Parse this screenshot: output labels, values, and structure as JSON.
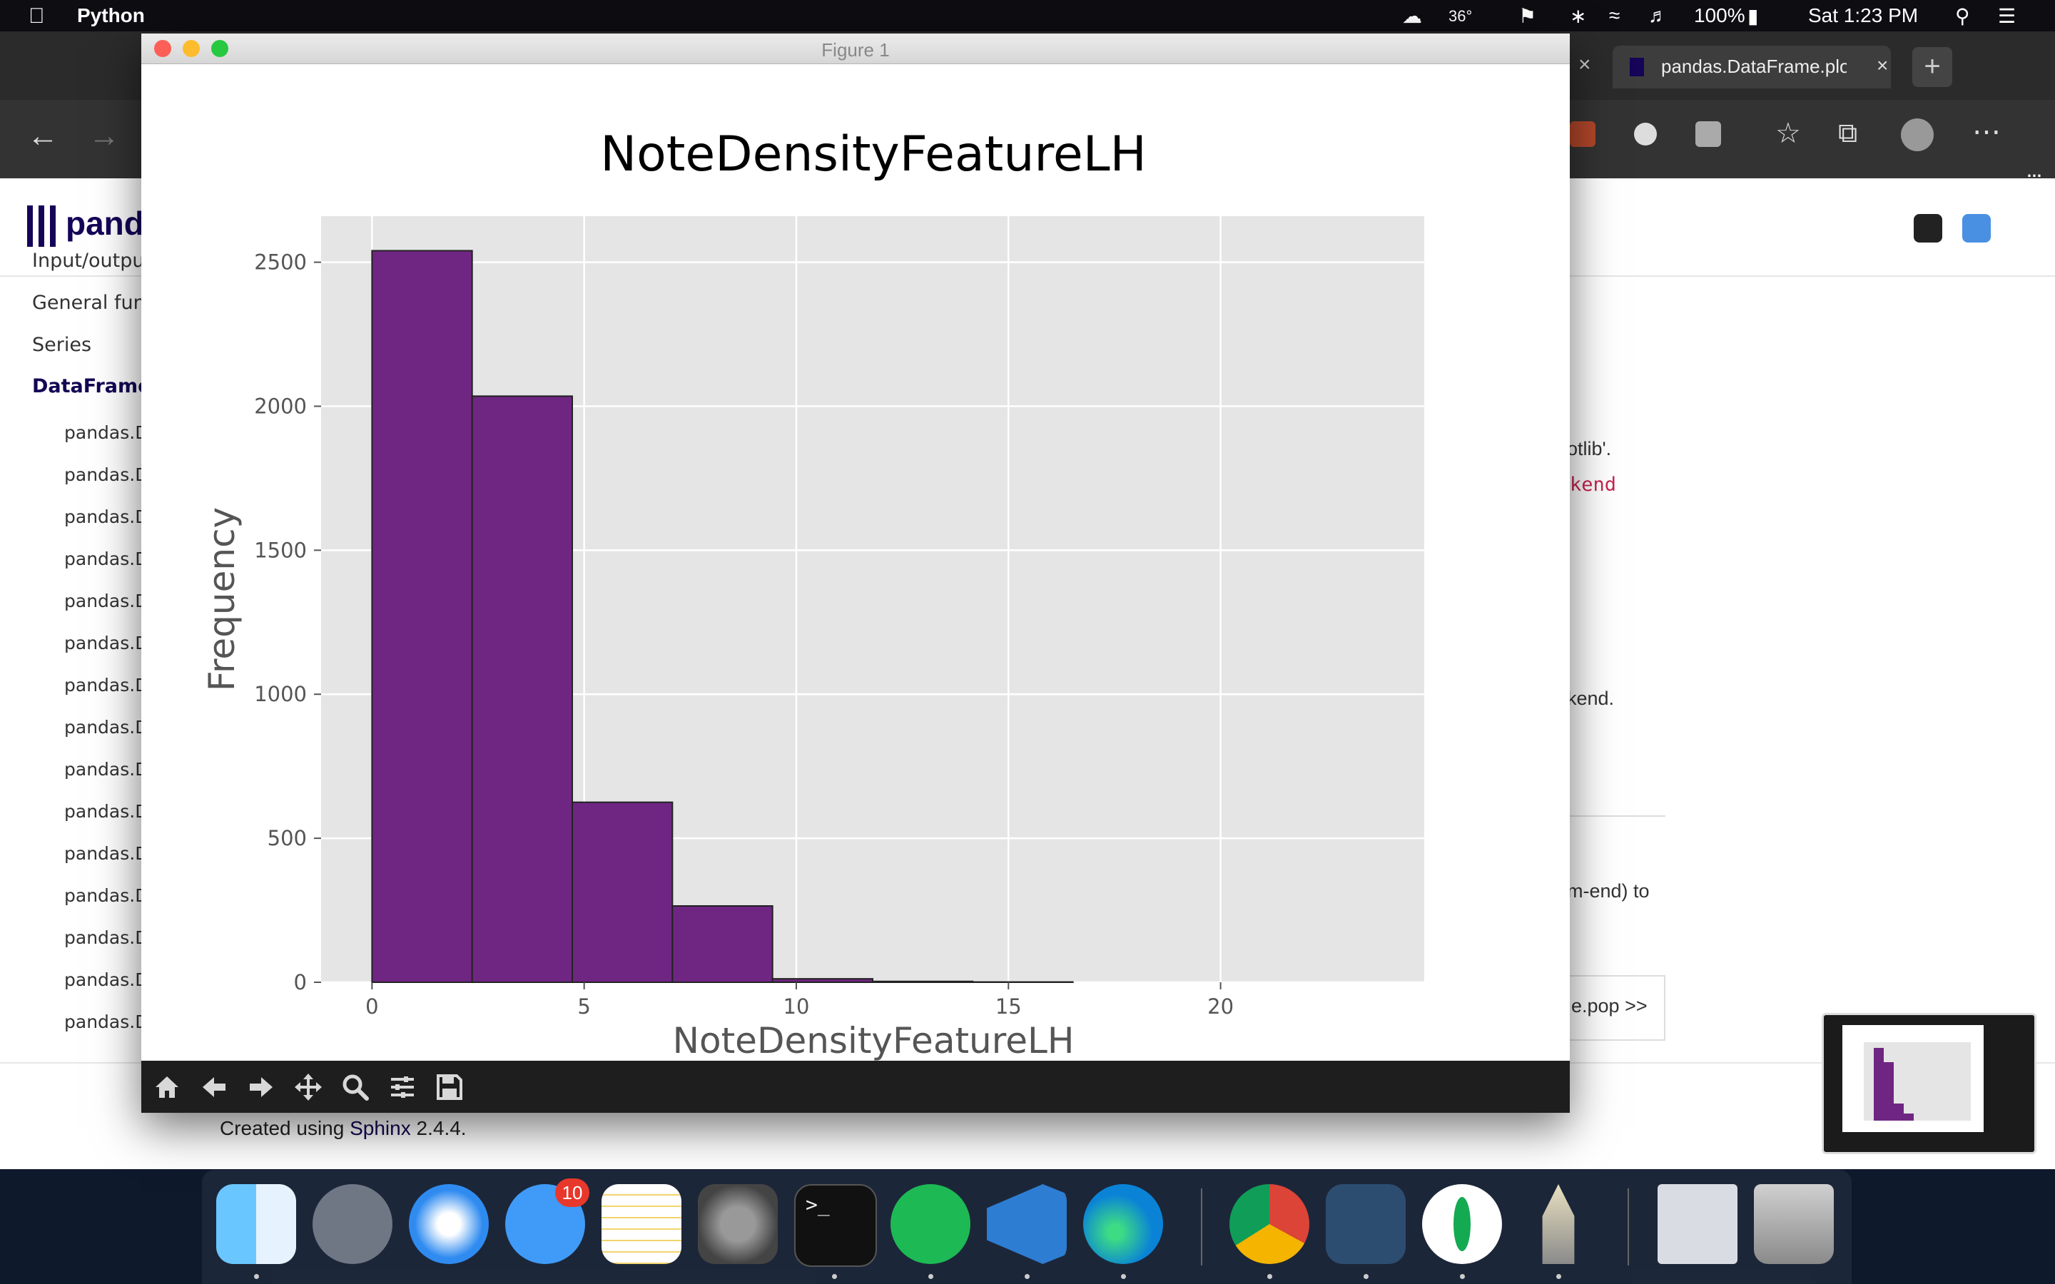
{
  "menubar": {
    "app_name": "Python",
    "temperature": "36°",
    "battery": "100%",
    "clock": "Sat 1:23 PM"
  },
  "browser": {
    "tab_title": "pandas.DataFrame.plot —",
    "logo_text": "pandas",
    "sidebar": {
      "items": [
        "Input/output",
        "General functions",
        "Series",
        "DataFrame"
      ],
      "subitems": [
        "pandas.D",
        "pandas.D",
        "pandas.D",
        "pandas.D",
        "pandas.D",
        "pandas.D",
        "pandas.D",
        "pandas.D",
        "pandas.D",
        "pandas.D",
        "pandas.D",
        "pandas.D",
        "pandas.D",
        "pandas.D",
        "pandas.D"
      ]
    },
    "content_fragments": {
      "line1": "otlib'.",
      "line2": "kend",
      "line3": "kend.",
      "line4": "m-end) to",
      "next_button": "e.pop >>"
    },
    "footer": {
      "prefix": "Created using ",
      "link": "Sphinx",
      "suffix": " 2.4.4."
    }
  },
  "figure_window": {
    "title": "Figure 1",
    "toolbar": [
      "home-icon",
      "back-arrow-icon",
      "forward-arrow-icon",
      "pan-icon",
      "zoom-icon",
      "configure-subplots-icon",
      "save-icon"
    ]
  },
  "dock": {
    "messages_badge": "10",
    "apps": [
      "Finder",
      "Launchpad",
      "Safari",
      "Messages",
      "Notes",
      "System Preferences",
      "Terminal",
      "Spotify",
      "Visual Studio Code",
      "Microsoft Edge",
      "Google Chrome",
      "MySQL Workbench",
      "MongoDB Compass",
      "Python Launcher",
      "Chrome window",
      "Trash"
    ]
  },
  "chart_data": {
    "type": "bar",
    "title": "NoteDensityFeatureLH",
    "xlabel": "NoteDensityFeatureLH",
    "ylabel": "Frequency",
    "bin_edges": [
      0,
      2.36,
      4.72,
      7.08,
      9.44,
      11.8,
      14.16,
      16.52,
      18.88,
      21.24,
      23.6
    ],
    "values": [
      2540,
      2035,
      625,
      265,
      12,
      3,
      1,
      0,
      0,
      0
    ],
    "xlim": [
      -1.2,
      24.8
    ],
    "ylim": [
      0,
      2660
    ],
    "xticks": [
      0,
      5,
      10,
      15,
      20
    ],
    "yticks": [
      0,
      500,
      1000,
      1500,
      2000,
      2500
    ],
    "bar_color": "#6f2682",
    "edge_color": "#222222",
    "background": "#e5e5e5",
    "grid": true
  }
}
